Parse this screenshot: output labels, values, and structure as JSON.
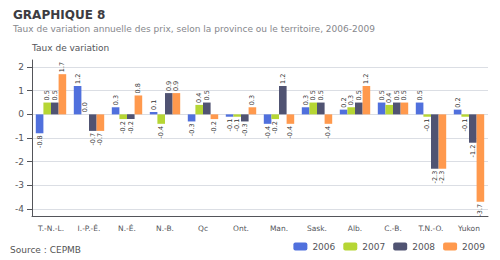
{
  "chart_data": {
    "type": "bar",
    "title": "GRAPHIQUE 8",
    "subtitle": "Taux de variation annuelle des prix, selon la province ou le territoire, 2006-2009",
    "ylabel": "Taux de variation",
    "annotations": [
      "Source : CEPMB"
    ],
    "categories": [
      "T.-N.-L.",
      "I.-P.-É.",
      "N.-É.",
      "N.-B.",
      "Qc",
      "Ont.",
      "Man.",
      "Sask.",
      "Alb.",
      "C.-B.",
      "T.N.-O.",
      "Yukon"
    ],
    "series": [
      {
        "name": "2006",
        "values": [
          -0.8,
          1.2,
          0.3,
          0.1,
          -0.3,
          -0.1,
          -0.4,
          0.3,
          0.2,
          0.5,
          0.5,
          0.2
        ],
        "value_labels": [
          "-0.8",
          "1.2",
          "0.3",
          "0.1",
          "-0.3",
          "-0.1",
          "-0.4",
          "0.3",
          "0.2",
          "0.5",
          "0.5",
          "0.2"
        ]
      },
      {
        "name": "2007",
        "values": [
          0.5,
          0.0,
          -0.2,
          -0.4,
          0.4,
          -0.1,
          -0.2,
          0.5,
          0.3,
          0.4,
          -0.1,
          -0.1
        ],
        "value_labels": [
          "0.5",
          "0.0",
          "-0.2",
          "-0.4",
          "0.4",
          "-0.1",
          "-0.2",
          "0.5",
          "0.3",
          "0.4",
          "-0.1",
          "-0.1"
        ]
      },
      {
        "name": "2008",
        "values": [
          0.5,
          -0.7,
          -0.2,
          0.9,
          0.5,
          -0.3,
          1.2,
          0.5,
          0.5,
          0.5,
          -2.3,
          -1.2
        ],
        "value_labels": [
          "0.5",
          "-0.7",
          "-0.2",
          "0.9",
          "0.5",
          "-0.3",
          "1.2",
          "0.5",
          "0.5",
          "0.5",
          "-2.3",
          "-1.2"
        ]
      },
      {
        "name": "2009",
        "values": [
          1.7,
          -0.7,
          0.8,
          0.9,
          -0.2,
          0.3,
          -0.4,
          -0.4,
          1.2,
          0.5,
          -2.3,
          -3.7
        ],
        "value_labels": [
          "1.7",
          "-0.7",
          "0.8",
          "0.9",
          "-0.2",
          "0.3",
          "-0.4",
          "-0.4",
          "1.2",
          "0.5",
          "-2.3",
          "-3.7"
        ]
      }
    ],
    "ylim": [
      -4.3,
      2.3
    ],
    "yticks": [
      -4,
      -3,
      -2,
      -1,
      0,
      1,
      2
    ],
    "grid": true,
    "legend": "lower right",
    "data_labels": true
  }
}
